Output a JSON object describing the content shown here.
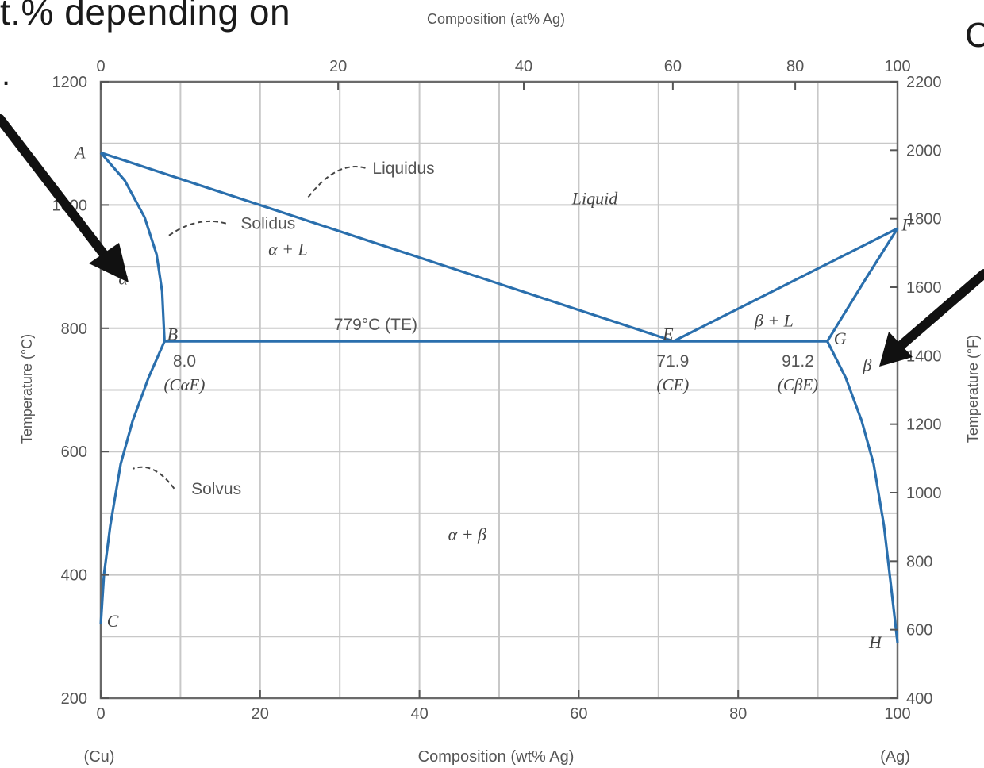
{
  "slide": {
    "heading_fragment": "t.% depending on",
    "heading_fragment_dot": ".",
    "right_fragment": "C"
  },
  "figure": {
    "top_axis_title": "Composition (at% Ag)",
    "bottom_axis_title": "Composition (wt% Ag)",
    "left_axis_title": "Temperature (°C)",
    "right_axis_title": "Temperature (°F)",
    "bottom_endpoint_left": "(Cu)",
    "bottom_endpoint_right": "(Ag)"
  },
  "chart_data": {
    "type": "line",
    "title": "",
    "xlabel": "Composition (wt% Ag)",
    "ylabel": "Temperature (°C)",
    "x2label": "Composition (at% Ag)",
    "y2label": "Temperature (°F)",
    "xlim": [
      0,
      100
    ],
    "ylim": [
      200,
      1200
    ],
    "y2lim": [
      400,
      2200
    ],
    "grid": true,
    "x_ticks": [
      0,
      20,
      40,
      60,
      80,
      100
    ],
    "x_tick_labels": [
      "0",
      "20",
      "40",
      "60",
      "80",
      "100"
    ],
    "x2_ticks": [
      0,
      20,
      40,
      60,
      80,
      100
    ],
    "x2_tick_labels": [
      "0",
      "20",
      "40",
      "60",
      "80",
      "100"
    ],
    "y_tick_labels": [
      {
        "value": 200,
        "label": "200"
      },
      {
        "value": 400,
        "label": "400"
      },
      {
        "value": 600,
        "label": "600"
      },
      {
        "value": 800,
        "label": "800"
      },
      {
        "value": 1000,
        "label": "1000"
      },
      {
        "value": 1200,
        "label": "1200"
      }
    ],
    "y2_ticks": [
      400,
      600,
      800,
      1000,
      1200,
      1400,
      1600,
      1800,
      2000,
      2200
    ],
    "y2_tick_labels": [
      "400",
      "600",
      "800",
      "1000",
      "1200",
      "1400",
      "1600",
      "1800",
      "2000",
      "2200"
    ],
    "line_color": "#2a6fad",
    "series": [
      {
        "id": "liquidus-cu",
        "points": [
          [
            0,
            1085
          ],
          [
            71.9,
            779
          ]
        ]
      },
      {
        "id": "liquidus-ag",
        "points": [
          [
            71.9,
            779
          ],
          [
            100,
            962
          ]
        ]
      },
      {
        "id": "solidus-alpha",
        "points": [
          [
            0,
            1085
          ],
          [
            3,
            1040
          ],
          [
            5.5,
            980
          ],
          [
            7,
            920
          ],
          [
            7.7,
            860
          ],
          [
            8,
            779
          ]
        ]
      },
      {
        "id": "solidus-beta",
        "points": [
          [
            100,
            962
          ],
          [
            96,
            880
          ],
          [
            91.2,
            779
          ]
        ]
      },
      {
        "id": "eutectic-isotherm",
        "points": [
          [
            8,
            779
          ],
          [
            91.2,
            779
          ]
        ]
      },
      {
        "id": "solvus-alpha",
        "points": [
          [
            8,
            779
          ],
          [
            6,
            720
          ],
          [
            4,
            650
          ],
          [
            2.5,
            580
          ],
          [
            1.2,
            480
          ],
          [
            0.4,
            400
          ],
          [
            0,
            320
          ]
        ]
      },
      {
        "id": "solvus-beta",
        "points": [
          [
            91.2,
            779
          ],
          [
            93.5,
            720
          ],
          [
            95.5,
            650
          ],
          [
            97,
            580
          ],
          [
            98.3,
            480
          ],
          [
            99.2,
            380
          ],
          [
            100,
            290
          ]
        ]
      }
    ],
    "point_labels": [
      {
        "text": "A",
        "x": -2.6,
        "y": 1085
      },
      {
        "text": "B",
        "x": 9,
        "y": 790
      },
      {
        "text": "C",
        "x": 1.5,
        "y": 325
      },
      {
        "text": "E",
        "x": 71.2,
        "y": 790
      },
      {
        "text": "F",
        "x": 101.2,
        "y": 968
      },
      {
        "text": "G",
        "x": 92.8,
        "y": 783
      },
      {
        "text": "H",
        "x": 97.2,
        "y": 290
      }
    ],
    "phase_labels": [
      {
        "text": "Liquid",
        "x": 62,
        "y": 1010
      },
      {
        "text": "α + L",
        "x": 23.5,
        "y": 928
      },
      {
        "text": "β + L",
        "x": 84.5,
        "y": 812
      },
      {
        "text": "α",
        "x": 2.8,
        "y": 880
      },
      {
        "text": "β",
        "x": 96.2,
        "y": 740
      },
      {
        "text": "α + β",
        "x": 46,
        "y": 465
      }
    ],
    "annotations": [
      {
        "text": "Liquidus",
        "x": 38,
        "y": 1060
      },
      {
        "text": "Solidus",
        "x": 21,
        "y": 970
      },
      {
        "text": "Solvus",
        "x": 14.5,
        "y": 540
      },
      {
        "text": "779°C (TE)",
        "x": 34.5,
        "y": 806
      }
    ],
    "composition_labels": [
      {
        "value": "8.0",
        "sub": "(CαE)",
        "x": 10.5
      },
      {
        "value": "71.9",
        "sub": "(CE)",
        "x": 71.8
      },
      {
        "value": "91.2",
        "sub": "(CβE)",
        "x": 87.5
      }
    ],
    "arrows": [
      {
        "id": "arrow-to-alpha",
        "region": "α"
      },
      {
        "id": "arrow-to-beta",
        "region": "β"
      }
    ]
  }
}
